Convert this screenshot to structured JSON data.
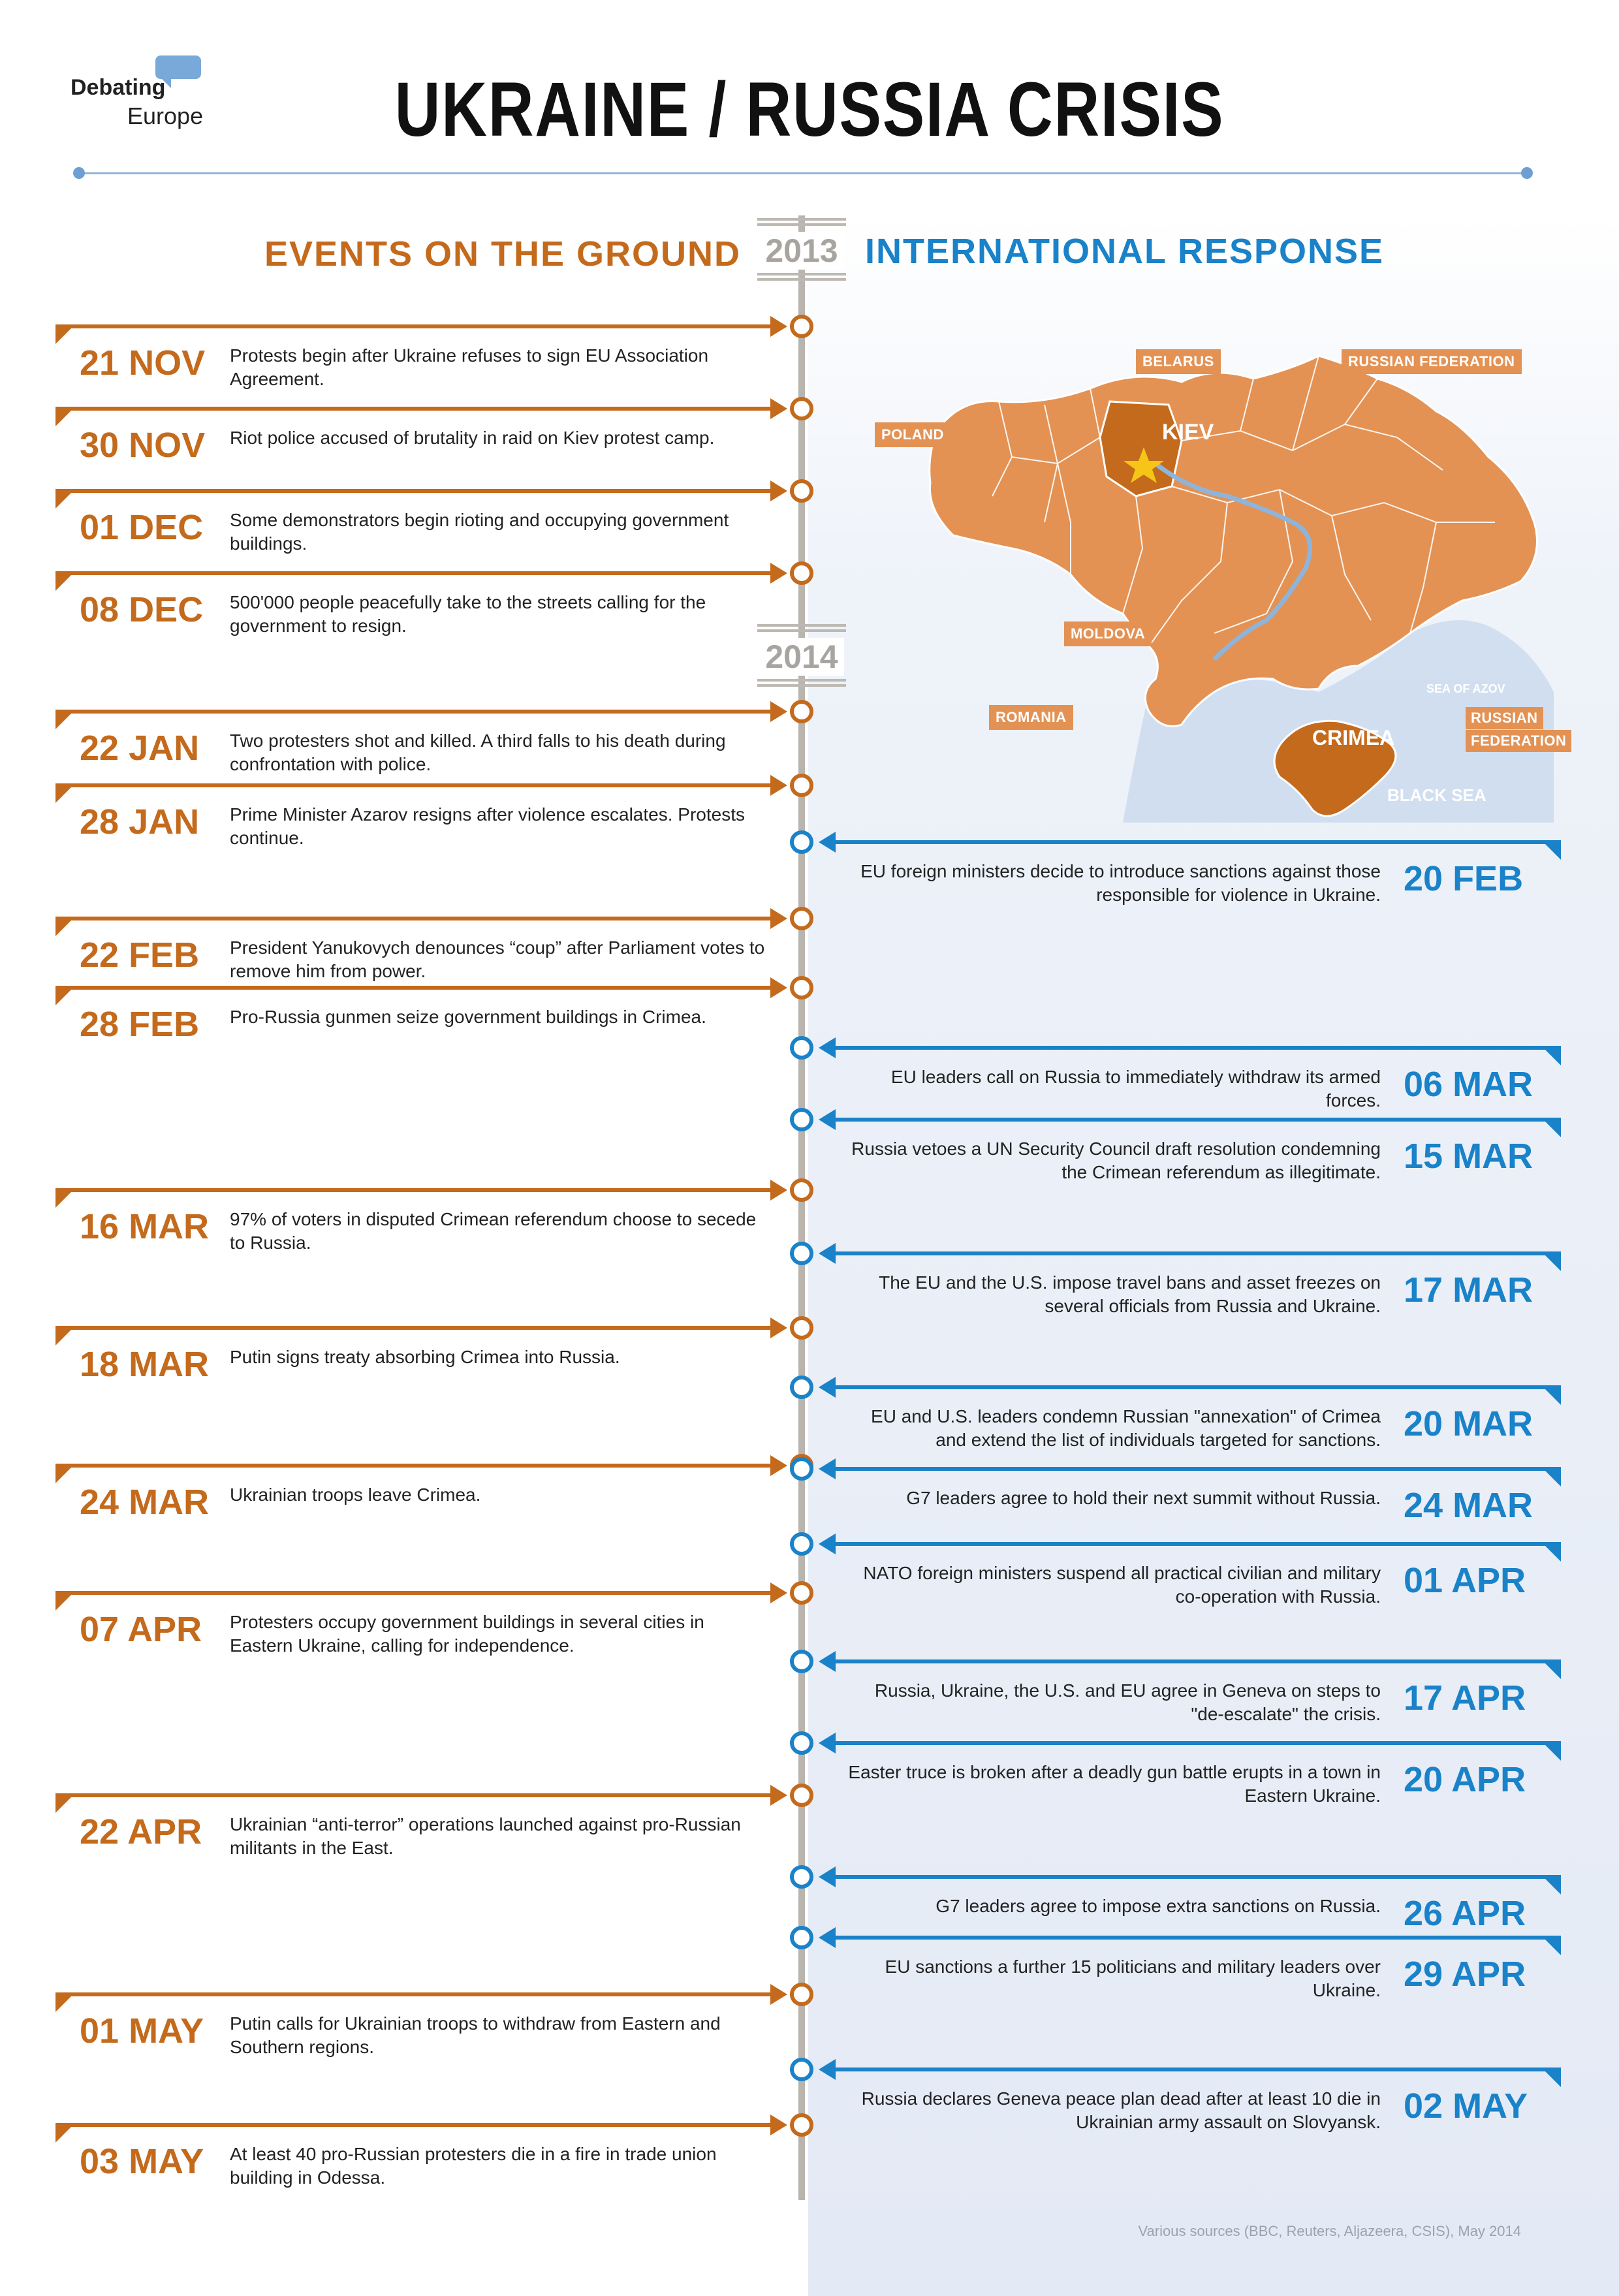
{
  "header": {
    "logo_line1": "Debating",
    "logo_line2": "Europe",
    "title": "UKRAINE / RUSSIA CRISIS"
  },
  "columns": {
    "left_heading": "EVENTS ON THE GROUND",
    "right_heading": "INTERNATIONAL RESPONSE"
  },
  "years": [
    "2013",
    "2014"
  ],
  "colors": {
    "ground": "#c46a1c",
    "international": "#1a82c8",
    "map_fill": "#e39254",
    "kiev_region": "#c46a1c",
    "axis": "#b9b4ae"
  },
  "map": {
    "labels": {
      "belarus": "BELARUS",
      "russia_north": "RUSSIAN FEDERATION",
      "poland": "POLAND",
      "kiev": "KIEV",
      "moldova": "MOLDOVA",
      "romania": "ROMANIA",
      "sea_of_azov": "SEA OF AZOV",
      "russia_south_1": "RUSSIAN",
      "russia_south_2": "FEDERATION",
      "crimea": "CRIMEA",
      "black_sea": "BLACK SEA"
    }
  },
  "ground_events": [
    {
      "date": "21 NOV",
      "text": "Protests begin after Ukraine refuses to sign EU Association Agreement."
    },
    {
      "date": "30 NOV",
      "text": "Riot police accused of brutality in raid on Kiev protest camp."
    },
    {
      "date": "01 DEC",
      "text": "Some demonstrators begin rioting and occupying government buildings."
    },
    {
      "date": "08 DEC",
      "text": "500'000 people peacefully take to the streets calling for the government to resign."
    },
    {
      "date": "22 JAN",
      "text": "Two protesters shot and killed. A third falls to his death during confrontation with police."
    },
    {
      "date": "28 JAN",
      "text": "Prime Minister Azarov resigns after violence escalates. Protests continue."
    },
    {
      "date": "22 FEB",
      "text": "President Yanukovych denounces “coup” after Parliament votes to remove him from power."
    },
    {
      "date": "28 FEB",
      "text": "Pro-Russia gunmen seize government buildings in Crimea."
    },
    {
      "date": "16 MAR",
      "text": "97% of voters in disputed Crimean referendum choose to secede to Russia."
    },
    {
      "date": "18 MAR",
      "text": "Putin signs treaty absorbing Crimea into Russia."
    },
    {
      "date": "24 MAR",
      "text": "Ukrainian troops leave Crimea."
    },
    {
      "date": "07 APR",
      "text": "Protesters occupy government buildings in several cities in Eastern Ukraine, calling for independence."
    },
    {
      "date": "22 APR",
      "text": "Ukrainian “anti-terror” operations launched against pro-Russian militants in the East."
    },
    {
      "date": "01 MAY",
      "text": "Putin calls for Ukrainian troops to withdraw from Eastern and Southern regions."
    },
    {
      "date": "03 MAY",
      "text": "At least 40 pro-Russian protesters die in a fire in trade union building in Odessa."
    }
  ],
  "international_events": [
    {
      "date": "20 FEB",
      "text": "EU foreign ministers decide to introduce sanctions against those responsible for violence in Ukraine."
    },
    {
      "date": "06 MAR",
      "text": "EU leaders call on Russia to immediately withdraw its armed forces."
    },
    {
      "date": "15 MAR",
      "text": "Russia vetoes a UN Security Council draft resolution condemning the Crimean referendum as illegitimate."
    },
    {
      "date": "17 MAR",
      "text": "The EU and the U.S. impose travel bans and asset freezes on several officials from Russia and Ukraine."
    },
    {
      "date": "20 MAR",
      "text": "EU and U.S. leaders condemn Russian \"annexation\" of Crimea and extend the list of individuals targeted for sanctions."
    },
    {
      "date": "24 MAR",
      "text": "G7 leaders agree to hold their next summit without Russia."
    },
    {
      "date": "01 APR",
      "text": "NATO foreign ministers suspend all practical civilian and military co-operation with Russia."
    },
    {
      "date": "17 APR",
      "text": "Russia, Ukraine, the U.S. and EU agree in Geneva on steps to \"de-escalate\" the crisis."
    },
    {
      "date": "20 APR",
      "text": "Easter truce is broken after a deadly gun battle erupts in a town in Eastern Ukraine."
    },
    {
      "date": "26 APR",
      "text": "G7 leaders agree to impose extra sanctions on Russia."
    },
    {
      "date": "29 APR",
      "text": "EU sanctions a further 15 politicians and military leaders over Ukraine."
    },
    {
      "date": "02 MAY",
      "text": "Russia declares Geneva peace plan dead after at least 10 die in Ukrainian army assault on Slovyansk."
    }
  ],
  "footer": {
    "sources": "Various sources (BBC, Reuters, Aljazeera, CSIS), May 2014"
  }
}
